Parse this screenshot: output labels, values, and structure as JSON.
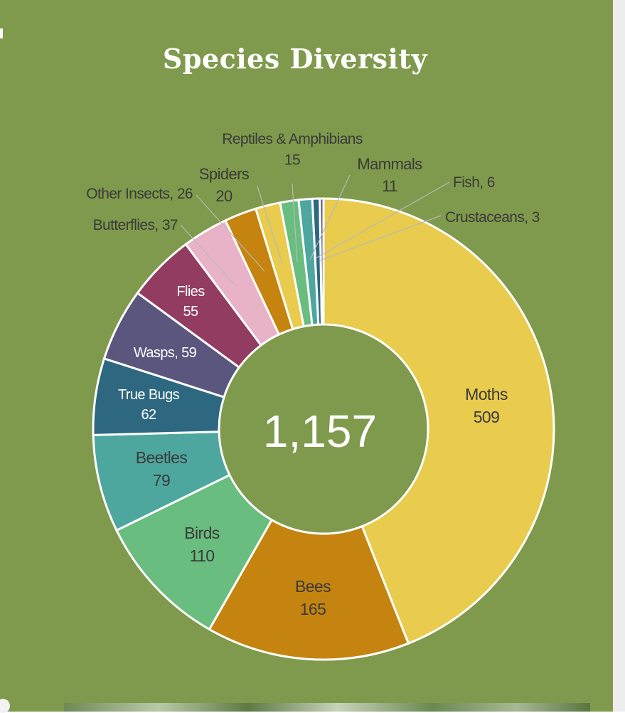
{
  "chart_data": {
    "type": "pie",
    "title": "Species Diversity",
    "center_label": "1,157",
    "categories": [
      "Moths",
      "Bees",
      "Birds",
      "Beetles",
      "True Bugs",
      "Wasps",
      "Flies",
      "Butterflies",
      "Other Insects",
      "Spiders",
      "Reptiles & Amphibians",
      "Mammals",
      "Fish",
      "Crustaceans"
    ],
    "values": [
      509,
      165,
      110,
      79,
      62,
      59,
      55,
      37,
      26,
      20,
      15,
      11,
      6,
      3
    ],
    "labels": [
      {
        "name": "Moths",
        "value": "509"
      },
      {
        "name": "Bees",
        "value": "165"
      },
      {
        "name": "Birds",
        "value": "110"
      },
      {
        "name": "Beetles",
        "value": "79"
      },
      {
        "name": "True Bugs",
        "value": "62"
      },
      {
        "name": "Wasps",
        "value": "59",
        "text": "Wasps, 59"
      },
      {
        "name": "Flies",
        "value": "55"
      },
      {
        "name": "Butterflies",
        "value": "37",
        "text": "Butterflies, 37"
      },
      {
        "name": "Other Insects",
        "value": "26",
        "text": "Other Insects, 26"
      },
      {
        "name": "Spiders",
        "value": "20"
      },
      {
        "name": "Reptiles & Amphibians",
        "value": "15"
      },
      {
        "name": "Mammals",
        "value": "11"
      },
      {
        "name": "Fish",
        "value": "6",
        "text": "Fish, 6"
      },
      {
        "name": "Crustaceans",
        "value": "3",
        "text": "Crustaceans, 3"
      }
    ],
    "colors": [
      "#e9cb4d",
      "#c4840f",
      "#69bd7e",
      "#4ea79f",
      "#2d6880",
      "#5a567d",
      "#933c62",
      "#e8b3c6",
      "#c4840f",
      "#e9cb4d",
      "#69bd7e",
      "#4ea79f",
      "#2d6880",
      "#5a567d"
    ]
  }
}
